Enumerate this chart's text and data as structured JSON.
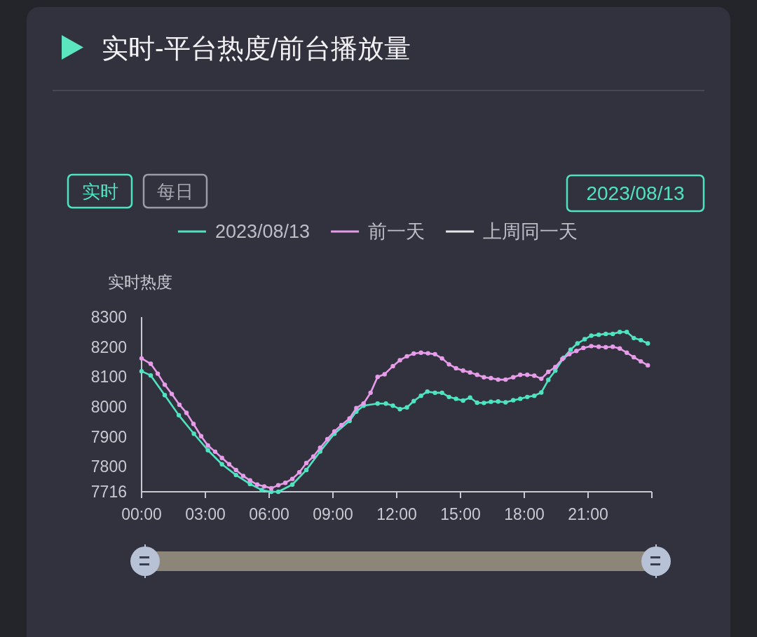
{
  "chart_data": {
    "type": "line",
    "title": "实时-平台热度/前台播放量",
    "ylabel": "实时热度",
    "annotations": [
      "实时",
      "每日",
      "2023/08/13"
    ],
    "legend": "top",
    "marker": "circle",
    "line_style": "solid",
    "xlim": [
      0,
      24
    ],
    "xticks": [
      {
        "value": 0,
        "label": "00:00"
      },
      {
        "value": 3,
        "label": "03:00"
      },
      {
        "value": 6,
        "label": "06:00"
      },
      {
        "value": 9,
        "label": "09:00"
      },
      {
        "value": 12,
        "label": "12:00"
      },
      {
        "value": 15,
        "label": "15:00"
      },
      {
        "value": 18,
        "label": "18:00"
      },
      {
        "value": 21,
        "label": "21:00"
      },
      {
        "value": 24,
        "label": null
      }
    ],
    "ylim": [
      7716,
      8300
    ],
    "yticks": [
      7716,
      7800,
      7900,
      8000,
      8100,
      8200,
      8300
    ],
    "series": [
      {
        "name": "2023/08/13",
        "color": "#50e3c2",
        "x": [
          0,
          0.43,
          1.09,
          1.75,
          2.46,
          3.12,
          3.78,
          4.44,
          5.1,
          5.65,
          6.1,
          6.43,
          7.09,
          7.75,
          8.4,
          9.07,
          9.78,
          10.1,
          10.44,
          11.1,
          11.49,
          11.82,
          12.15,
          12.48,
          12.8,
          13.14,
          13.44,
          13.8,
          14.13,
          14.46,
          14.79,
          15.12,
          15.45,
          15.78,
          16.1,
          16.43,
          16.77,
          17.12,
          17.48,
          17.81,
          18.14,
          18.47,
          18.8,
          19.13,
          19.46,
          19.85,
          20.18,
          20.5,
          20.84,
          21.15,
          21.5,
          21.83,
          22.16,
          22.49,
          22.82,
          23.15,
          23.48,
          23.81
        ],
        "values": [
          8119,
          8105,
          8039,
          7972,
          7910,
          7855,
          7808,
          7772,
          7742,
          7722,
          7716,
          7716,
          7740,
          7789,
          7851,
          7910,
          7953,
          7984,
          8004,
          8011,
          8011,
          8004,
          7992,
          7998,
          8019,
          8037,
          8051,
          8047,
          8047,
          8033,
          8027,
          8021,
          8031,
          8014,
          8013,
          8017,
          8018,
          8015,
          8022,
          8027,
          8033,
          8037,
          8048,
          8090,
          8121,
          8164,
          8191,
          8212,
          8226,
          8238,
          8241,
          8244,
          8244,
          8250,
          8250,
          8230,
          8223,
          8212
        ]
      },
      {
        "name": "前一天",
        "color": "#e79ce9",
        "x": [
          0,
          0.43,
          0.76,
          1.09,
          1.42,
          1.78,
          2.11,
          2.44,
          2.8,
          3.12,
          3.46,
          3.78,
          4.12,
          4.44,
          4.78,
          5.1,
          5.44,
          5.77,
          6.1,
          6.43,
          6.76,
          7.09,
          7.42,
          7.75,
          8.08,
          8.4,
          8.74,
          9.07,
          9.4,
          9.78,
          10.1,
          10.44,
          10.77,
          11.1,
          11.43,
          11.82,
          12.15,
          12.48,
          12.8,
          13.14,
          13.47,
          13.8,
          14.13,
          14.46,
          14.79,
          15.12,
          15.45,
          15.78,
          16.1,
          16.43,
          16.77,
          17.12,
          17.48,
          17.81,
          18.14,
          18.47,
          18.8,
          19.13,
          19.46,
          19.79,
          20.12,
          20.45,
          20.78,
          21.15,
          21.5,
          21.83,
          22.16,
          22.49,
          22.82,
          23.15,
          23.48,
          23.81
        ],
        "values": [
          8162,
          8144,
          8111,
          8074,
          8043,
          8007,
          7980,
          7943,
          7902,
          7871,
          7850,
          7829,
          7808,
          7789,
          7769,
          7754,
          7740,
          7734,
          7728,
          7738,
          7746,
          7759,
          7781,
          7812,
          7834,
          7863,
          7892,
          7918,
          7939,
          7961,
          7996,
          8011,
          8047,
          8100,
          8109,
          8136,
          8156,
          8169,
          8178,
          8181,
          8179,
          8176,
          8162,
          8142,
          8129,
          8121,
          8115,
          8107,
          8099,
          8096,
          8091,
          8091,
          8099,
          8107,
          8107,
          8104,
          8094,
          8117,
          8133,
          8160,
          8176,
          8187,
          8197,
          8203,
          8201,
          8199,
          8201,
          8195,
          8181,
          8166,
          8152,
          8139
        ]
      },
      {
        "name": "上周同一天",
        "color": "#e6e6e6"
      }
    ]
  }
}
